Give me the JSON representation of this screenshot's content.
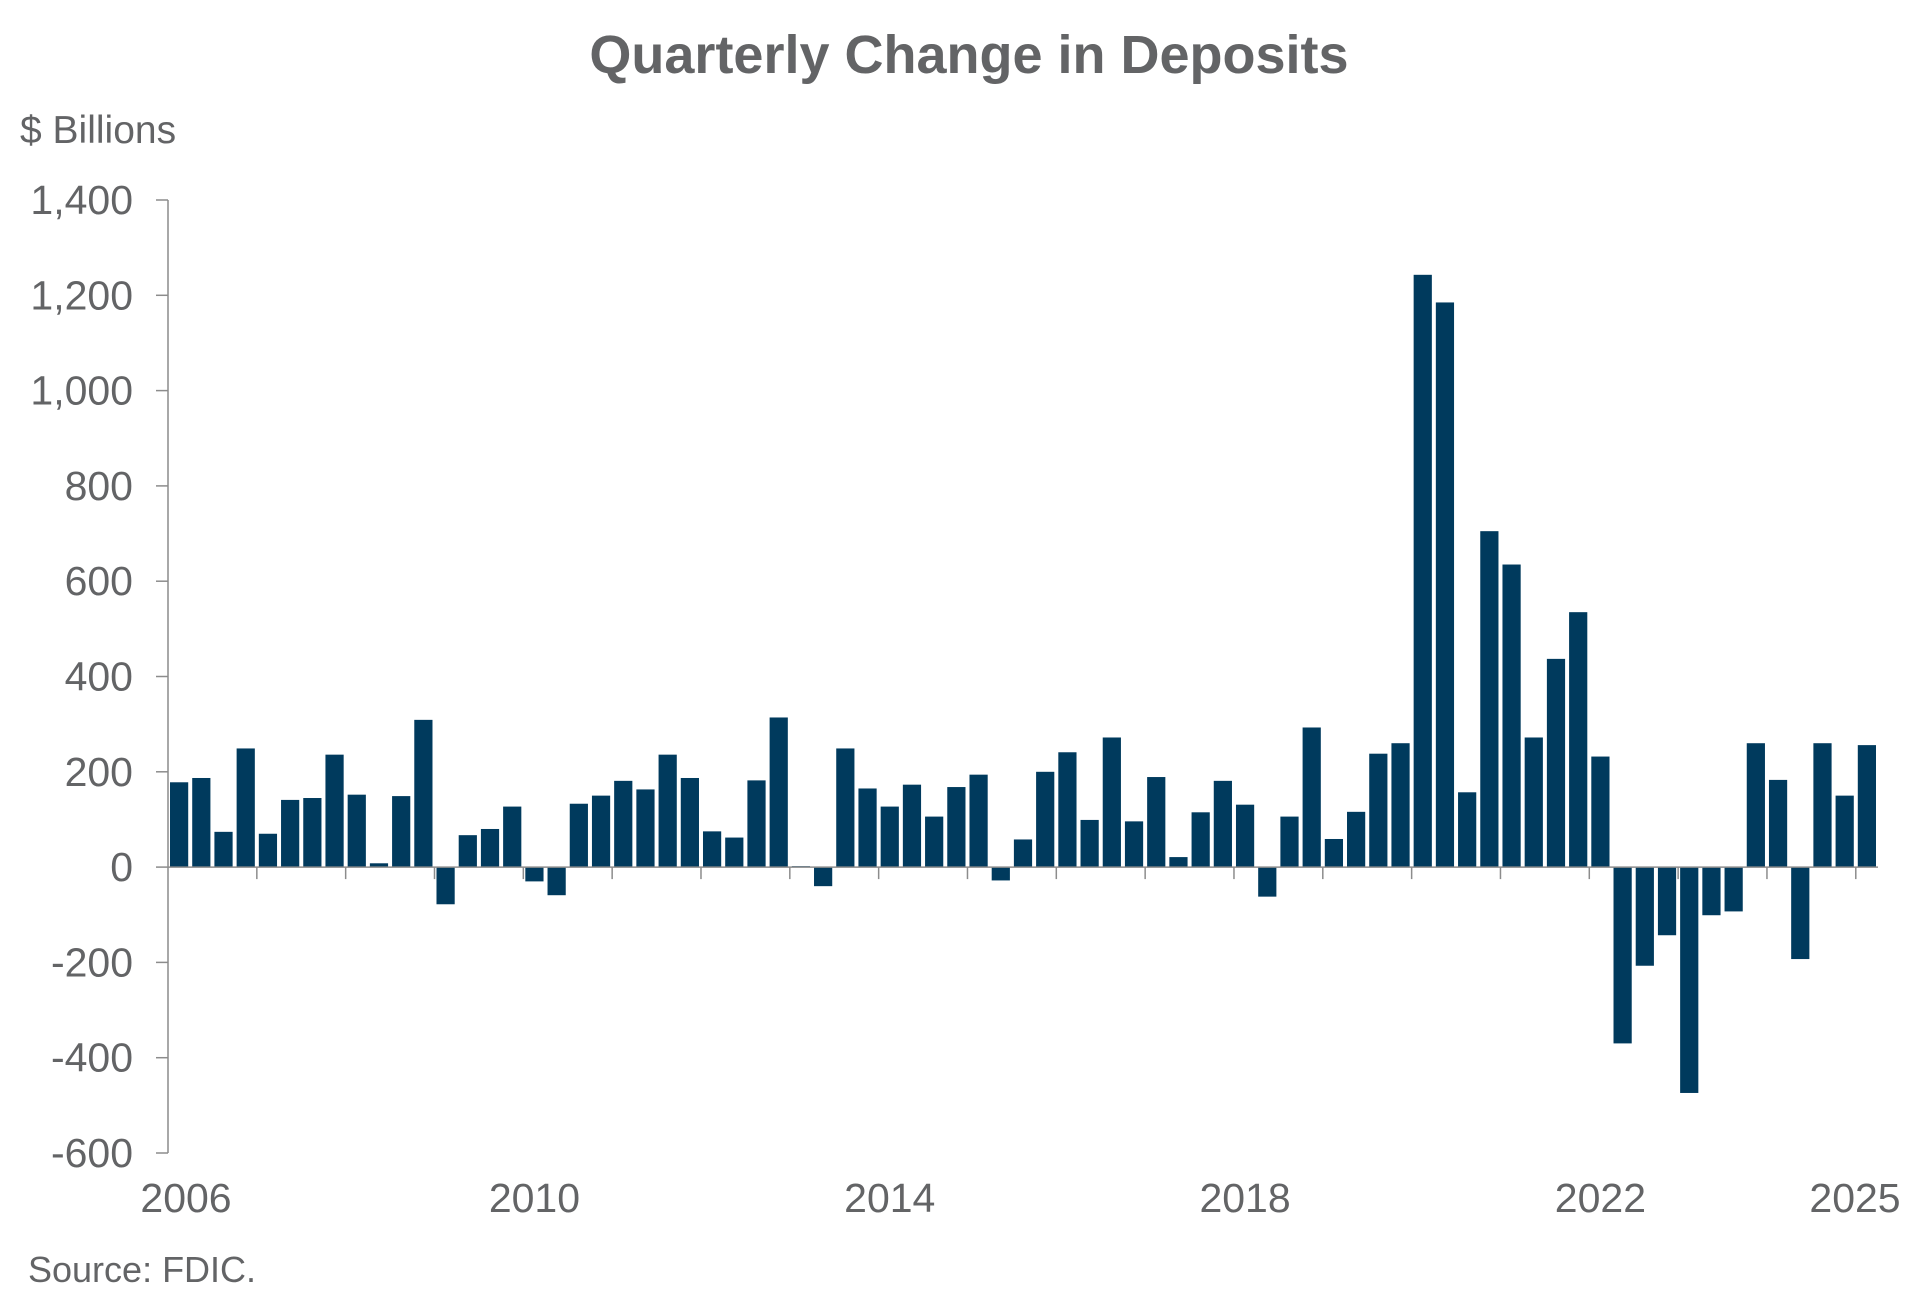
{
  "chart_data": {
    "type": "bar",
    "title": "Quarterly Change in Deposits",
    "units_label": "$ Billions",
    "source": "Source: FDIC.",
    "ylim": [
      -600,
      1400
    ],
    "y_ticks": [
      1400,
      1200,
      1000,
      800,
      600,
      400,
      200,
      0,
      -200,
      -400,
      -600
    ],
    "y_tick_labels": [
      "1,400",
      "1,200",
      "1,000",
      "800",
      "600",
      "400",
      "200",
      "0",
      "-200",
      "-400",
      "-600"
    ],
    "x_tick_labels": [
      {
        "label": "2006",
        "quarter_index": 0
      },
      {
        "label": "2010",
        "quarter_index": 16
      },
      {
        "label": "2014",
        "quarter_index": 32
      },
      {
        "label": "2018",
        "quarter_index": 48
      },
      {
        "label": "2022",
        "quarter_index": 64
      },
      {
        "label": "2025",
        "quarter_index": 76
      }
    ],
    "start": "2006 Q1",
    "end": "2025 Q1",
    "bar_color": "#003a5d",
    "categories": [
      "2006 Q1",
      "2006 Q2",
      "2006 Q3",
      "2006 Q4",
      "2007 Q1",
      "2007 Q2",
      "2007 Q3",
      "2007 Q4",
      "2008 Q1",
      "2008 Q2",
      "2008 Q3",
      "2008 Q4",
      "2009 Q1",
      "2009 Q2",
      "2009 Q3",
      "2009 Q4",
      "2010 Q1",
      "2010 Q2",
      "2010 Q3",
      "2010 Q4",
      "2011 Q1",
      "2011 Q2",
      "2011 Q3",
      "2011 Q4",
      "2012 Q1",
      "2012 Q2",
      "2012 Q3",
      "2012 Q4",
      "2013 Q1",
      "2013 Q2",
      "2013 Q3",
      "2013 Q4",
      "2014 Q1",
      "2014 Q2",
      "2014 Q3",
      "2014 Q4",
      "2015 Q1",
      "2015 Q2",
      "2015 Q3",
      "2015 Q4",
      "2016 Q1",
      "2016 Q2",
      "2016 Q3",
      "2016 Q4",
      "2017 Q1",
      "2017 Q2",
      "2017 Q3",
      "2017 Q4",
      "2018 Q1",
      "2018 Q2",
      "2018 Q3",
      "2018 Q4",
      "2019 Q1",
      "2019 Q2",
      "2019 Q3",
      "2019 Q4",
      "2020 Q1",
      "2020 Q2",
      "2020 Q3",
      "2020 Q4",
      "2021 Q1",
      "2021 Q2",
      "2021 Q3",
      "2021 Q4",
      "2022 Q1",
      "2022 Q2",
      "2022 Q3",
      "2022 Q4",
      "2023 Q1",
      "2023 Q2",
      "2023 Q3",
      "2023 Q4",
      "2024 Q1",
      "2024 Q2",
      "2024 Q3",
      "2024 Q4",
      "2025 Q1"
    ],
    "values": [
      178,
      187,
      74,
      249,
      70,
      141,
      145,
      236,
      152,
      8,
      149,
      309,
      -78,
      67,
      80,
      127,
      -30,
      -59,
      133,
      150,
      181,
      163,
      236,
      187,
      75,
      62,
      182,
      314,
      2,
      -40,
      249,
      165,
      127,
      173,
      106,
      168,
      194,
      -28,
      58,
      200,
      241,
      99,
      272,
      96,
      189,
      21,
      115,
      181,
      131,
      -62,
      106,
      293,
      59,
      116,
      238,
      260,
      1243,
      1185,
      157,
      705,
      635,
      272,
      437,
      535,
      232,
      -370,
      -207,
      -143,
      -474,
      -101,
      -93,
      260,
      183,
      -193,
      260,
      150,
      256
    ]
  }
}
